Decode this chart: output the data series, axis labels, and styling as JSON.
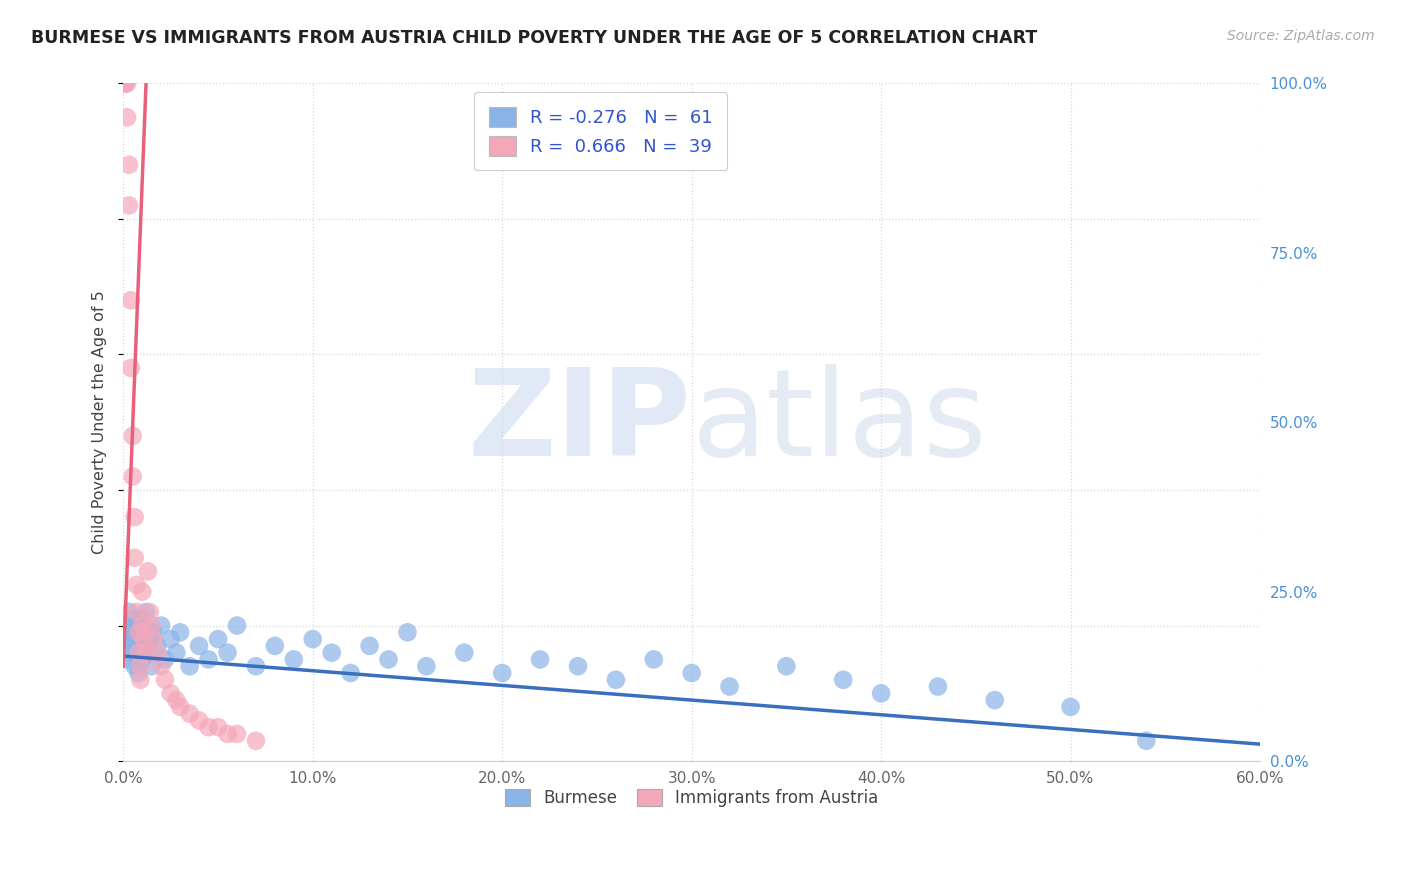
{
  "title": "BURMESE VS IMMIGRANTS FROM AUSTRIA CHILD POVERTY UNDER THE AGE OF 5 CORRELATION CHART",
  "source": "Source: ZipAtlas.com",
  "ylabel": "Child Poverty Under the Age of 5",
  "xlim": [
    0.0,
    0.6
  ],
  "ylim": [
    0.0,
    1.0
  ],
  "xticks": [
    0.0,
    0.1,
    0.2,
    0.3,
    0.4,
    0.5,
    0.6
  ],
  "xtick_labels": [
    "0.0%",
    "10.0%",
    "20.0%",
    "30.0%",
    "40.0%",
    "50.0%",
    "60.0%"
  ],
  "yticks_right": [
    0.0,
    0.25,
    0.5,
    0.75,
    1.0
  ],
  "ytick_labels_right": [
    "0.0%",
    "25.0%",
    "50.0%",
    "75.0%",
    "100.0%"
  ],
  "burmese_color": "#8ab4e8",
  "austria_color": "#f4a7b9",
  "burmese_line_color": "#3a6fbf",
  "austria_line_color": "#e8607a",
  "R_burmese": -0.276,
  "N_burmese": 61,
  "R_austria": 0.666,
  "N_austria": 39,
  "legend_label_burmese": "Burmese",
  "legend_label_austria": "Immigrants from Austria",
  "background_color": "#ffffff",
  "grid_color": "#d8d8d8",
  "burmese_x": [
    0.001,
    0.002,
    0.003,
    0.003,
    0.004,
    0.004,
    0.005,
    0.005,
    0.006,
    0.006,
    0.007,
    0.007,
    0.008,
    0.008,
    0.009,
    0.009,
    0.01,
    0.01,
    0.011,
    0.012,
    0.013,
    0.014,
    0.015,
    0.016,
    0.018,
    0.02,
    0.022,
    0.025,
    0.028,
    0.03,
    0.035,
    0.04,
    0.045,
    0.05,
    0.055,
    0.06,
    0.07,
    0.08,
    0.09,
    0.1,
    0.11,
    0.12,
    0.13,
    0.14,
    0.15,
    0.16,
    0.18,
    0.2,
    0.22,
    0.24,
    0.26,
    0.28,
    0.3,
    0.32,
    0.35,
    0.38,
    0.4,
    0.43,
    0.46,
    0.5,
    0.54
  ],
  "burmese_y": [
    0.2,
    0.18,
    0.15,
    0.22,
    0.19,
    0.16,
    0.17,
    0.21,
    0.18,
    0.14,
    0.2,
    0.16,
    0.19,
    0.13,
    0.17,
    0.21,
    0.15,
    0.18,
    0.2,
    0.22,
    0.16,
    0.18,
    0.14,
    0.19,
    0.17,
    0.2,
    0.15,
    0.18,
    0.16,
    0.19,
    0.14,
    0.17,
    0.15,
    0.18,
    0.16,
    0.2,
    0.14,
    0.17,
    0.15,
    0.18,
    0.16,
    0.13,
    0.17,
    0.15,
    0.19,
    0.14,
    0.16,
    0.13,
    0.15,
    0.14,
    0.12,
    0.15,
    0.13,
    0.11,
    0.14,
    0.12,
    0.1,
    0.11,
    0.09,
    0.08,
    0.03
  ],
  "austria_x": [
    0.001,
    0.001,
    0.002,
    0.002,
    0.003,
    0.003,
    0.004,
    0.004,
    0.005,
    0.005,
    0.006,
    0.006,
    0.007,
    0.007,
    0.008,
    0.008,
    0.009,
    0.009,
    0.01,
    0.01,
    0.011,
    0.012,
    0.013,
    0.014,
    0.015,
    0.016,
    0.018,
    0.02,
    0.022,
    0.025,
    0.028,
    0.03,
    0.035,
    0.04,
    0.045,
    0.05,
    0.055,
    0.06,
    0.07
  ],
  "austria_y": [
    1.0,
    1.0,
    1.0,
    0.95,
    0.88,
    0.82,
    0.68,
    0.58,
    0.48,
    0.42,
    0.36,
    0.3,
    0.26,
    0.22,
    0.19,
    0.16,
    0.14,
    0.12,
    0.25,
    0.2,
    0.18,
    0.16,
    0.28,
    0.22,
    0.2,
    0.18,
    0.16,
    0.14,
    0.12,
    0.1,
    0.09,
    0.08,
    0.07,
    0.06,
    0.05,
    0.05,
    0.04,
    0.04,
    0.03
  ],
  "burmese_trend": [
    0.0,
    0.6,
    0.155,
    0.025
  ],
  "austria_trend_x": [
    0.0,
    0.012
  ],
  "austria_trend_y": [
    0.14,
    1.0
  ]
}
